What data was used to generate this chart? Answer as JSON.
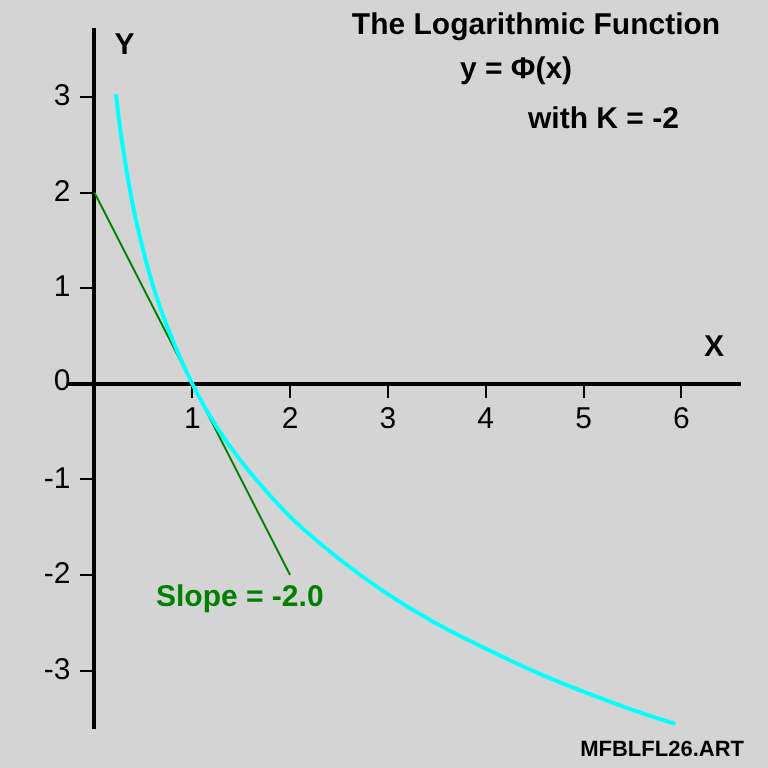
{
  "chart_data": {
    "type": "line",
    "title": "The Logarithmic Function",
    "subtitle": "y = Φ(x)",
    "xlabel": "X",
    "ylabel": "Y",
    "annotations": [
      "with K = -2",
      "Slope = -2.0",
      "MFBLFL26.ART"
    ],
    "xlim": [
      -0.25,
      6.6
    ],
    "ylim": [
      -3.6,
      3.7
    ],
    "xticks": [
      1,
      2,
      3,
      4,
      5,
      6
    ],
    "yticks": [
      -3,
      -2,
      -1,
      0,
      1,
      2,
      3
    ],
    "grid": false,
    "legend": false,
    "marker": "none",
    "series": [
      {
        "color": "#00ffff",
        "x": [
          0.22,
          0.25,
          0.3,
          0.4,
          0.5,
          0.6,
          0.75,
          1,
          1.25,
          1.5,
          2,
          2.5,
          3,
          3.5,
          4,
          4.5,
          5,
          5.5,
          5.94
        ],
        "values": [
          3.03,
          2.77,
          2.41,
          1.83,
          1.39,
          1.02,
          0.58,
          0,
          -0.45,
          -0.81,
          -1.39,
          -1.83,
          -2.2,
          -2.51,
          -2.77,
          -3.01,
          -3.22,
          -3.41,
          -3.56
        ]
      },
      {
        "color": "#008000",
        "x": [
          0,
          2
        ],
        "values": [
          2,
          -2
        ]
      }
    ]
  }
}
